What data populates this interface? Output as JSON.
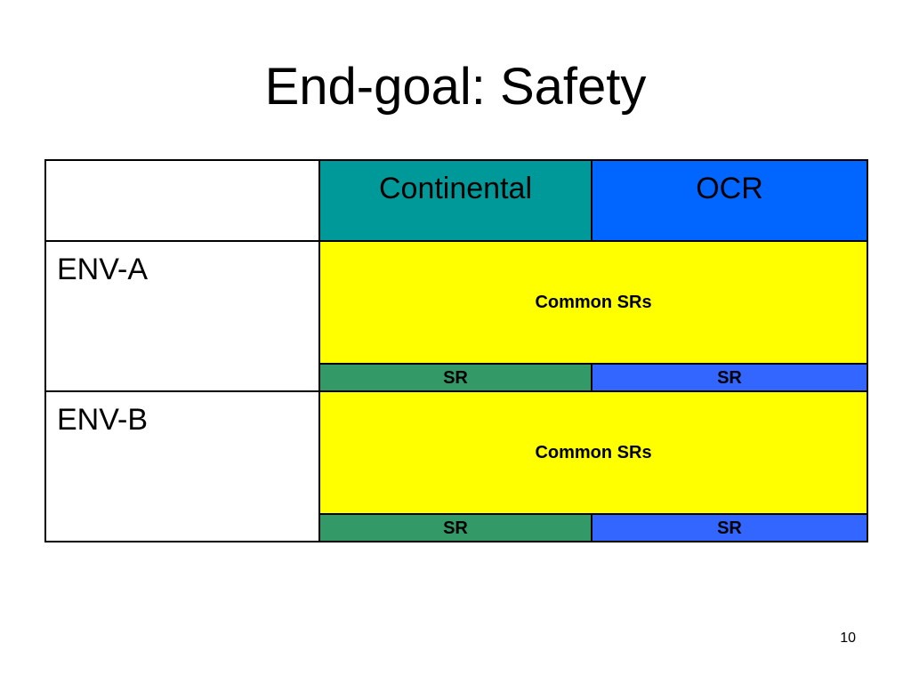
{
  "slide": {
    "title": "End-goal: Safety",
    "page_number": "10"
  },
  "table": {
    "headers": [
      "",
      "Continental",
      "OCR"
    ],
    "rows": [
      {
        "label": "ENV-A",
        "common": "Common SRs",
        "sr_left": "SR",
        "sr_right": "SR"
      },
      {
        "label": "ENV-B",
        "common": "Common SRs",
        "sr_left": "SR",
        "sr_right": "SR"
      }
    ]
  },
  "colors": {
    "continental_header": "#009999",
    "ocr_header": "#0066ff",
    "common_fill": "#ffff00",
    "sr_left_fill": "#339966",
    "sr_right_fill": "#3366ff"
  }
}
